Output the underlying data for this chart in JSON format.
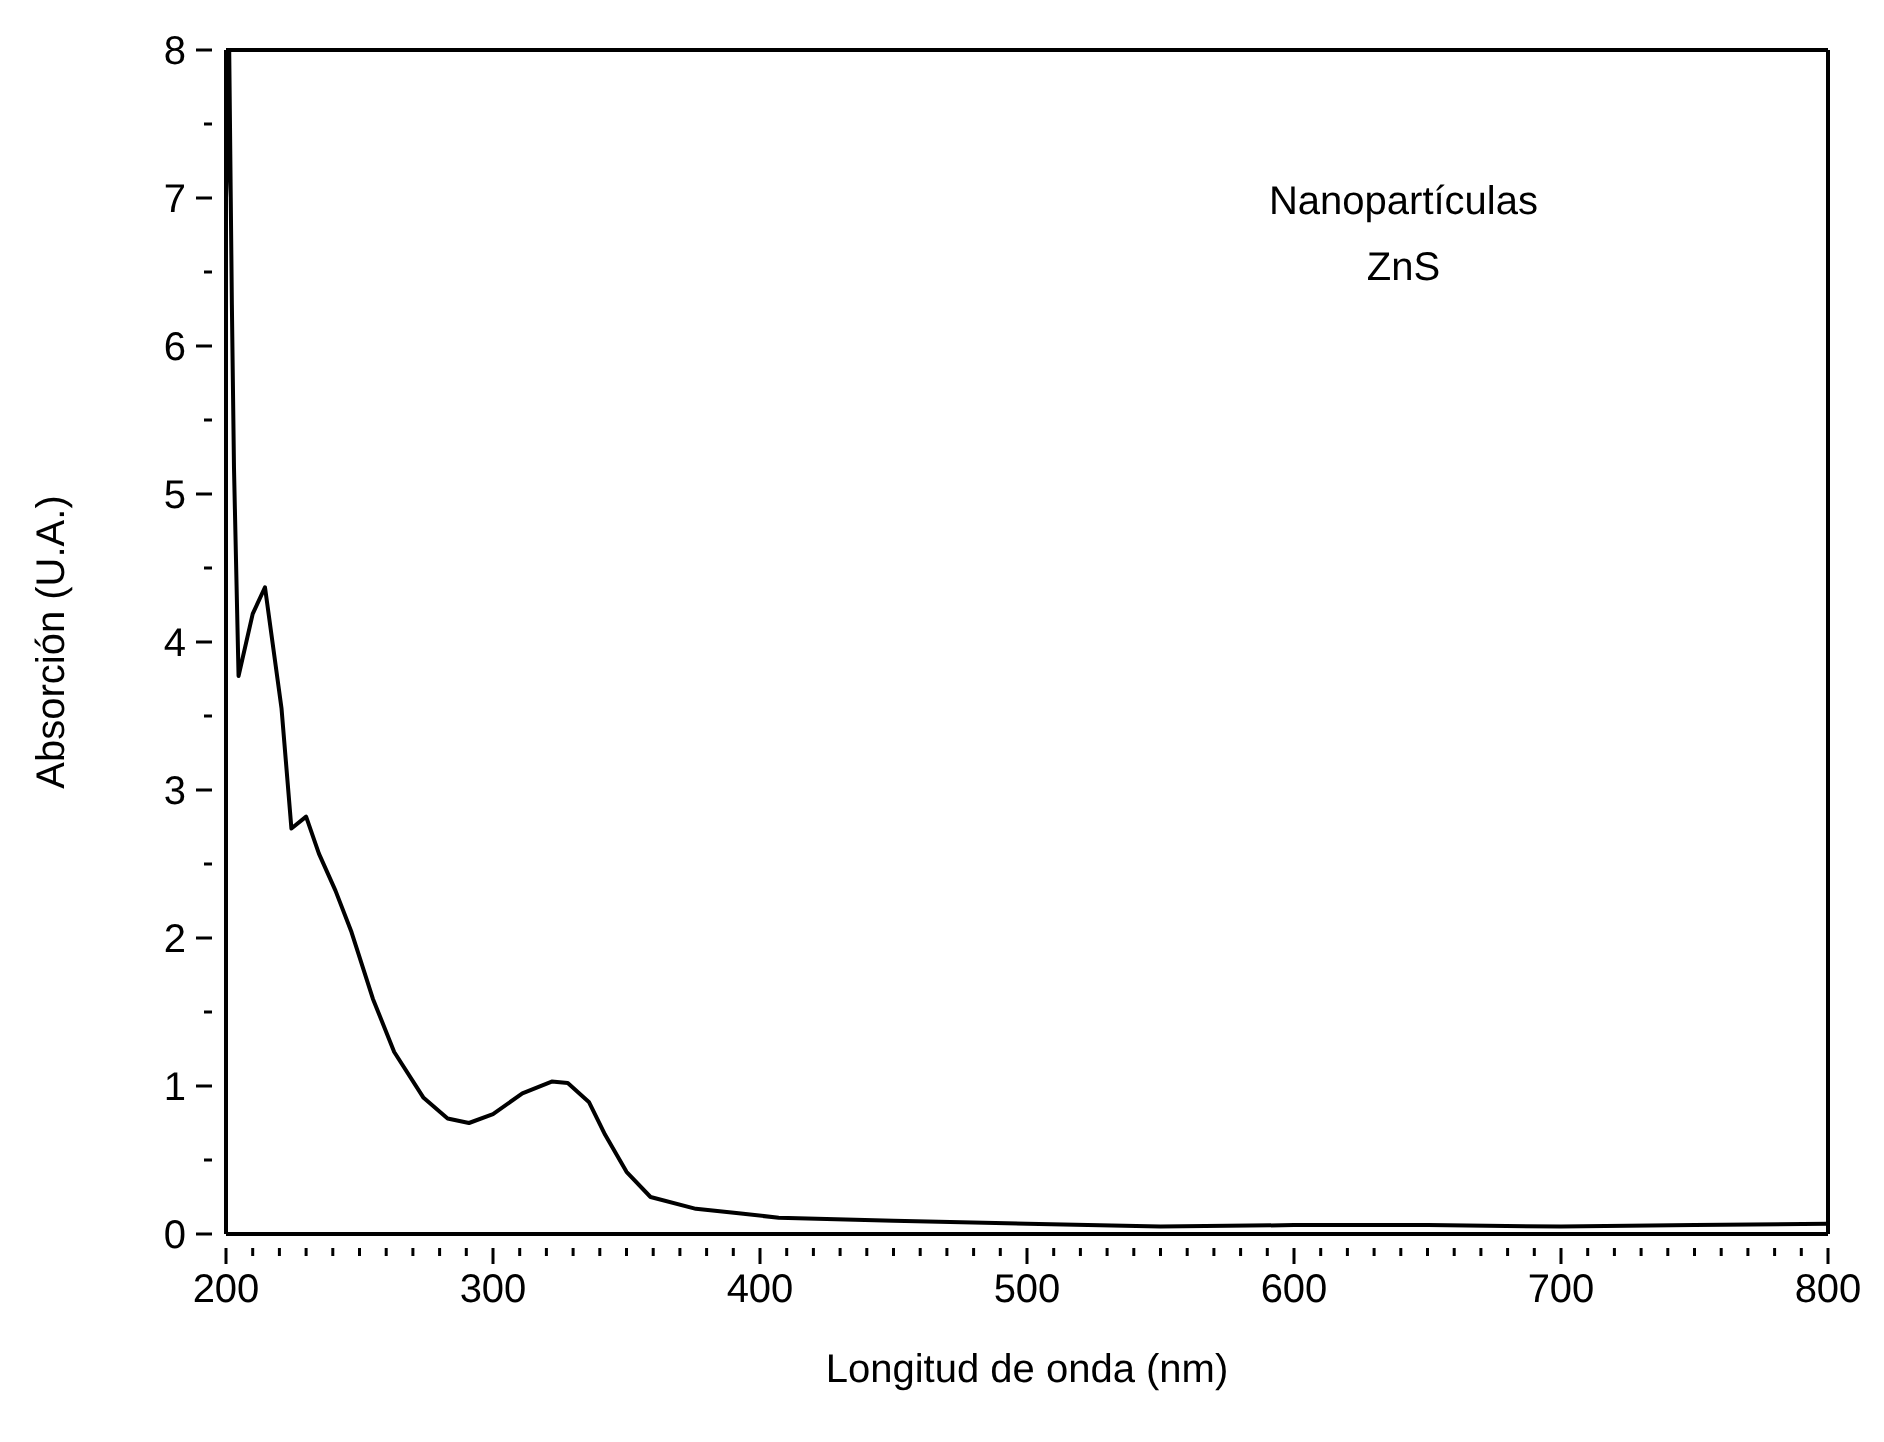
{
  "chart_data": {
    "type": "line",
    "xlabel": "Longitud de onda (nm)",
    "ylabel": "Absorción (U.A.)",
    "annotations": [
      "Nanopartículas",
      "ZnS"
    ],
    "series": [
      {
        "color": "#000000",
        "x": [
          200,
          200.6,
          201.2,
          202.2,
          203,
          204.3,
          204.7,
          210,
          214.6,
          220.8,
          224.5,
          230,
          234.8,
          241,
          247,
          255,
          263,
          274,
          283,
          291,
          300,
          311,
          322,
          328,
          336,
          342,
          350,
          359,
          376,
          392,
          407,
          450,
          500,
          550,
          600,
          650,
          700,
          750,
          800
        ],
        "values": [
          7.0,
          7.3,
          8,
          6.28,
          5.17,
          4.1,
          3.77,
          4.19,
          4.37,
          3.55,
          2.74,
          2.82,
          2.57,
          2.32,
          2.04,
          1.59,
          1.23,
          0.92,
          0.78,
          0.75,
          0.81,
          0.95,
          1.03,
          1.02,
          0.89,
          0.67,
          0.42,
          0.25,
          0.17,
          0.14,
          0.11,
          0.09,
          0.07,
          0.05,
          0.06,
          0.06,
          0.05,
          0.06,
          0.07
        ]
      }
    ],
    "xlim": [
      200,
      800
    ],
    "xticks": [
      200,
      {
        "value": 210,
        "label": null
      },
      {
        "value": 220,
        "label": null
      },
      {
        "value": 230,
        "label": null
      },
      {
        "value": 240,
        "label": null
      },
      {
        "value": 250,
        "label": null
      },
      {
        "value": 260,
        "label": null
      },
      {
        "value": 270,
        "label": null
      },
      {
        "value": 280,
        "label": null
      },
      {
        "value": 290,
        "label": null
      },
      300,
      {
        "value": 310,
        "label": null
      },
      {
        "value": 320,
        "label": null
      },
      {
        "value": 330,
        "label": null
      },
      {
        "value": 340,
        "label": null
      },
      {
        "value": 350,
        "label": null
      },
      {
        "value": 360,
        "label": null
      },
      {
        "value": 370,
        "label": null
      },
      {
        "value": 380,
        "label": null
      },
      {
        "value": 390,
        "label": null
      },
      400,
      {
        "value": 410,
        "label": null
      },
      {
        "value": 420,
        "label": null
      },
      {
        "value": 430,
        "label": null
      },
      {
        "value": 440,
        "label": null
      },
      {
        "value": 450,
        "label": null
      },
      {
        "value": 460,
        "label": null
      },
      {
        "value": 470,
        "label": null
      },
      {
        "value": 480,
        "label": null
      },
      {
        "value": 490,
        "label": null
      },
      500,
      {
        "value": 510,
        "label": null
      },
      {
        "value": 520,
        "label": null
      },
      {
        "value": 530,
        "label": null
      },
      {
        "value": 540,
        "label": null
      },
      {
        "value": 550,
        "label": null
      },
      {
        "value": 560,
        "label": null
      },
      {
        "value": 570,
        "label": null
      },
      {
        "value": 580,
        "label": null
      },
      {
        "value": 590,
        "label": null
      },
      600,
      {
        "value": 610,
        "label": null
      },
      {
        "value": 620,
        "label": null
      },
      {
        "value": 630,
        "label": null
      },
      {
        "value": 640,
        "label": null
      },
      {
        "value": 650,
        "label": null
      },
      {
        "value": 660,
        "label": null
      },
      {
        "value": 670,
        "label": null
      },
      {
        "value": 680,
        "label": null
      },
      {
        "value": 690,
        "label": null
      },
      700,
      {
        "value": 710,
        "label": null
      },
      {
        "value": 720,
        "label": null
      },
      {
        "value": 730,
        "label": null
      },
      {
        "value": 740,
        "label": null
      },
      {
        "value": 750,
        "label": null
      },
      {
        "value": 760,
        "label": null
      },
      {
        "value": 770,
        "label": null
      },
      {
        "value": 780,
        "label": null
      },
      {
        "value": 790,
        "label": null
      },
      800
    ],
    "ylim": [
      0,
      8
    ],
    "yticks": [
      0,
      {
        "value": 0.5,
        "label": null
      },
      1,
      {
        "value": 1.5,
        "label": null
      },
      2,
      {
        "value": 2.5,
        "label": null
      },
      3,
      {
        "value": 3.5,
        "label": null
      },
      4,
      {
        "value": 4.5,
        "label": null
      },
      5,
      {
        "value": 5.5,
        "label": null
      },
      6,
      {
        "value": 6.5,
        "label": null
      },
      7,
      {
        "value": 7.5,
        "label": null
      },
      8
    ],
    "grid": false,
    "legend": false,
    "marker": "none",
    "line_style": "solid"
  }
}
